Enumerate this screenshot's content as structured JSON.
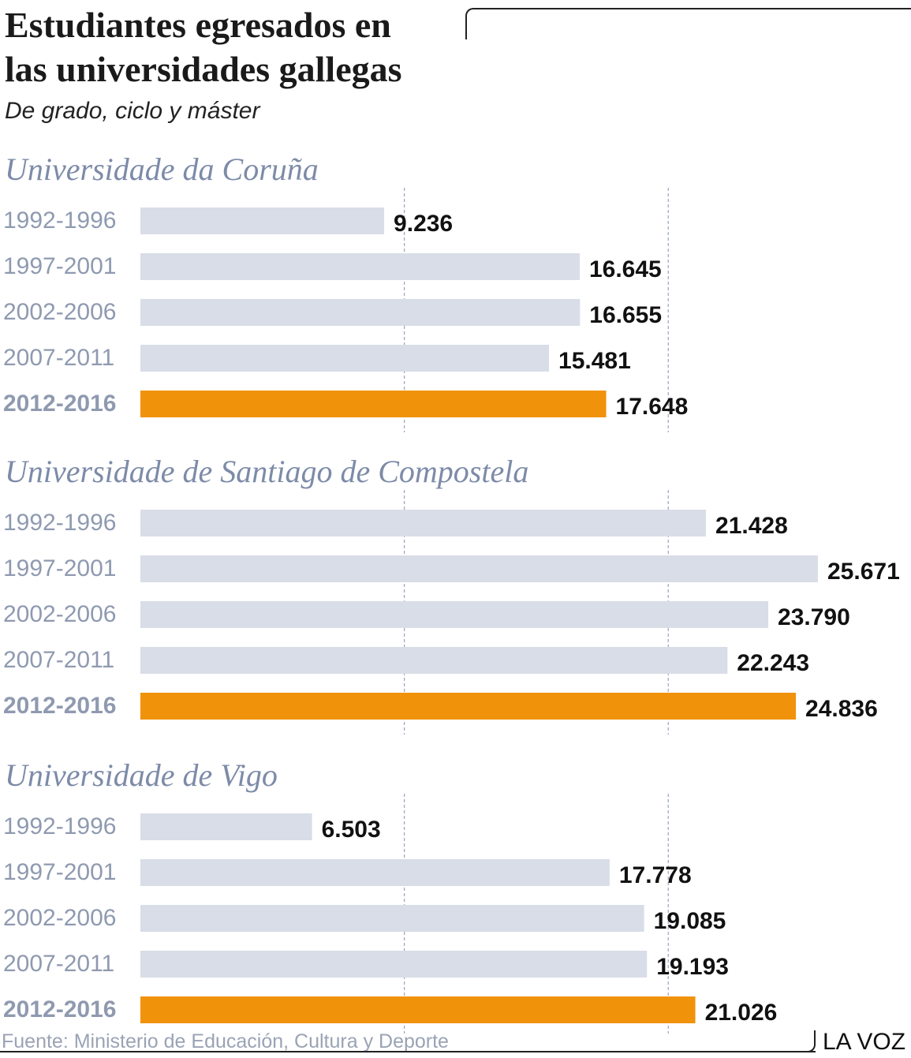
{
  "title_lines": [
    "Estudiantes egresados en",
    "las universidades gallegas"
  ],
  "subtitle": "De grado, ciclo y máster",
  "source": "Fuente: Ministerio de Educación, Cultura y Deporte",
  "brand": "LA VOZ",
  "colors": {
    "bar": "#d8dde7",
    "highlight": "#f0920a",
    "section_title": "#7d8ba8",
    "period_label": "#8f9ab0",
    "value_label": "#111111",
    "gridline": "#9aa3bd"
  },
  "chart_data": [
    {
      "type": "bar",
      "orientation": "horizontal",
      "title": "Universidade da Coruña",
      "categories": [
        "1992-1996",
        "1997-2001",
        "2002-2006",
        "2007-2011",
        "2012-2016"
      ],
      "values": [
        9236,
        16645,
        16655,
        15481,
        17648
      ],
      "value_labels": [
        "9.236",
        "16.645",
        "16.655",
        "15.481",
        "17.648"
      ],
      "highlight_index": 4,
      "xlim": [
        0,
        30000
      ],
      "grid": "dashed vertical at 10.000 and 20.000"
    },
    {
      "type": "bar",
      "orientation": "horizontal",
      "title": "Universidade de Santiago de Compostela",
      "categories": [
        "1992-1996",
        "1997-2001",
        "2002-2006",
        "2007-2011",
        "2012-2016"
      ],
      "values": [
        21428,
        25671,
        23790,
        22243,
        24836
      ],
      "value_labels": [
        "21.428",
        "25.671",
        "23.790",
        "22.243",
        "24.836"
      ],
      "highlight_index": 4,
      "xlim": [
        0,
        30000
      ],
      "grid": "dashed vertical at 10.000 and 20.000"
    },
    {
      "type": "bar",
      "orientation": "horizontal",
      "title": "Universidade de Vigo",
      "categories": [
        "1992-1996",
        "1997-2001",
        "2002-2006",
        "2007-2011",
        "2012-2016"
      ],
      "values": [
        6503,
        17778,
        19085,
        19193,
        21026
      ],
      "value_labels": [
        "6.503",
        "17.778",
        "19.085",
        "19.193",
        "21.026"
      ],
      "highlight_index": 4,
      "xlim": [
        0,
        30000
      ],
      "grid": "dashed vertical at 10.000 and 20.000"
    }
  ]
}
